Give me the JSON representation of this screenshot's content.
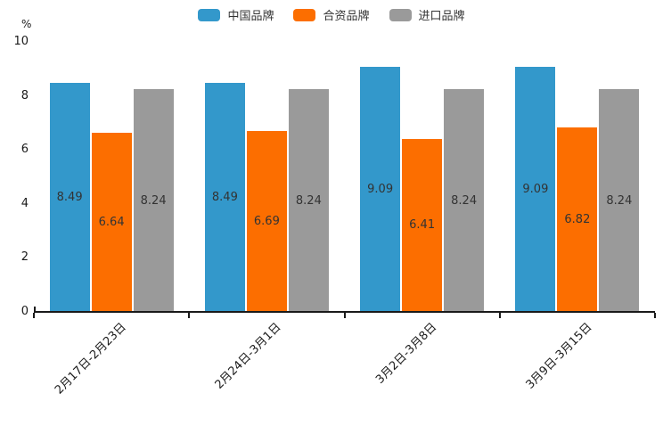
{
  "chart_data": {
    "type": "bar",
    "title": "",
    "unit_label": "%",
    "categories": [
      "2月17日-2月23日",
      "2月24日-3月1日",
      "3月2日-3月8日",
      "3月9日-3月15日"
    ],
    "series": [
      {
        "name": "中国品牌",
        "color": "#3398CB",
        "values": [
          8.49,
          8.49,
          9.09,
          9.09
        ]
      },
      {
        "name": "合资品牌",
        "color": "#FC6E00",
        "values": [
          6.64,
          6.69,
          6.41,
          6.82
        ]
      },
      {
        "name": "进口品牌",
        "color": "#9A9A9A",
        "values": [
          8.24,
          8.24,
          8.24,
          8.24
        ]
      }
    ],
    "ylim": [
      0,
      10
    ],
    "yticks": [
      0,
      2,
      4,
      6,
      8,
      10
    ],
    "legend_position": "top-center",
    "grid": false,
    "value_labels": true,
    "axis_color": "#1a1a1a",
    "value_label_color": "#333333"
  }
}
